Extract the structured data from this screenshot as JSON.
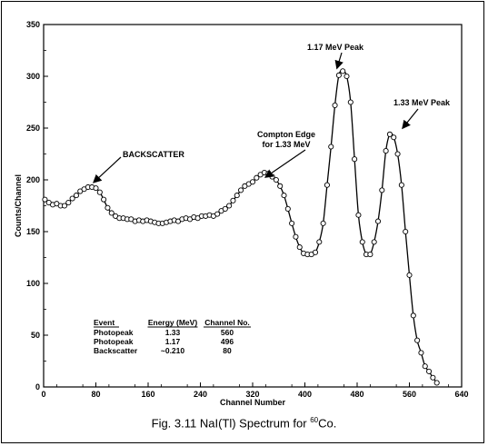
{
  "chart_data": {
    "type": "scatter",
    "xlabel": "Channel Number",
    "ylabel": "Counts/Channel",
    "xlim": [
      0,
      640
    ],
    "ylim": [
      0,
      350
    ],
    "xticks": [
      "0",
      "80",
      "160",
      "240",
      "320",
      "400",
      "480",
      "560",
      "640"
    ],
    "yticks": [
      "0",
      "50",
      "100",
      "150",
      "200",
      "250",
      "300",
      "350"
    ],
    "grid": false,
    "points": [
      [
        2,
        181
      ],
      [
        8,
        178
      ],
      [
        14,
        176
      ],
      [
        20,
        177
      ],
      [
        26,
        175
      ],
      [
        32,
        175
      ],
      [
        38,
        178
      ],
      [
        44,
        182
      ],
      [
        50,
        185
      ],
      [
        56,
        189
      ],
      [
        62,
        191
      ],
      [
        68,
        193
      ],
      [
        74,
        193
      ],
      [
        80,
        192
      ],
      [
        86,
        188
      ],
      [
        92,
        181
      ],
      [
        98,
        173
      ],
      [
        104,
        168
      ],
      [
        110,
        165
      ],
      [
        116,
        163
      ],
      [
        122,
        163
      ],
      [
        128,
        162
      ],
      [
        134,
        162
      ],
      [
        140,
        160
      ],
      [
        146,
        161
      ],
      [
        152,
        160
      ],
      [
        158,
        161
      ],
      [
        164,
        160
      ],
      [
        170,
        159
      ],
      [
        176,
        158
      ],
      [
        182,
        158
      ],
      [
        188,
        159
      ],
      [
        194,
        160
      ],
      [
        200,
        161
      ],
      [
        206,
        160
      ],
      [
        212,
        162
      ],
      [
        218,
        163
      ],
      [
        224,
        162
      ],
      [
        230,
        164
      ],
      [
        236,
        163
      ],
      [
        242,
        165
      ],
      [
        248,
        165
      ],
      [
        254,
        166
      ],
      [
        260,
        165
      ],
      [
        266,
        167
      ],
      [
        272,
        170
      ],
      [
        278,
        172
      ],
      [
        284,
        175
      ],
      [
        290,
        180
      ],
      [
        296,
        185
      ],
      [
        302,
        190
      ],
      [
        308,
        194
      ],
      [
        314,
        196
      ],
      [
        320,
        198
      ],
      [
        326,
        202
      ],
      [
        332,
        205
      ],
      [
        338,
        207
      ],
      [
        344,
        206
      ],
      [
        350,
        203
      ],
      [
        356,
        200
      ],
      [
        362,
        194
      ],
      [
        368,
        185
      ],
      [
        374,
        172
      ],
      [
        380,
        158
      ],
      [
        386,
        145
      ],
      [
        392,
        135
      ],
      [
        398,
        129
      ],
      [
        404,
        128
      ],
      [
        410,
        128
      ],
      [
        416,
        130
      ],
      [
        422,
        140
      ],
      [
        428,
        158
      ],
      [
        434,
        195
      ],
      [
        440,
        232
      ],
      [
        446,
        272
      ],
      [
        452,
        301
      ],
      [
        458,
        305
      ],
      [
        464,
        300
      ],
      [
        470,
        275
      ],
      [
        476,
        220
      ],
      [
        482,
        166
      ],
      [
        488,
        140
      ],
      [
        494,
        128
      ],
      [
        500,
        128
      ],
      [
        506,
        140
      ],
      [
        512,
        160
      ],
      [
        518,
        190
      ],
      [
        524,
        228
      ],
      [
        530,
        244
      ],
      [
        536,
        241
      ],
      [
        542,
        225
      ],
      [
        548,
        195
      ],
      [
        554,
        150
      ],
      [
        560,
        108
      ],
      [
        566,
        69
      ],
      [
        572,
        45
      ],
      [
        578,
        33
      ],
      [
        584,
        20
      ],
      [
        590,
        15
      ],
      [
        596,
        9
      ],
      [
        602,
        4
      ]
    ],
    "annotations": [
      {
        "label": "BACKSCATTER",
        "x": 68,
        "y": 193
      },
      {
        "label": "Compton Edge",
        "label2": "for 1.33 MeV",
        "x": 345,
        "y": 199
      },
      {
        "label": "1.17 MeV Peak",
        "x": 456,
        "y": 305
      },
      {
        "label": "1.33 MeV Peak",
        "x": 548,
        "y": 248
      }
    ],
    "table": {
      "headers": [
        "Event",
        "Energy (MeV)",
        "Channel No."
      ],
      "rows": [
        [
          "Photopeak",
          "1.33",
          "560"
        ],
        [
          "Photopeak",
          "1.17",
          "496"
        ],
        [
          "Backscatter",
          "~0.210",
          "80"
        ]
      ]
    }
  },
  "caption": {
    "prefix": "Fig. 3.11  NaI(Tl) Spectrum for ",
    "superscript": "60",
    "suffix": "Co."
  }
}
